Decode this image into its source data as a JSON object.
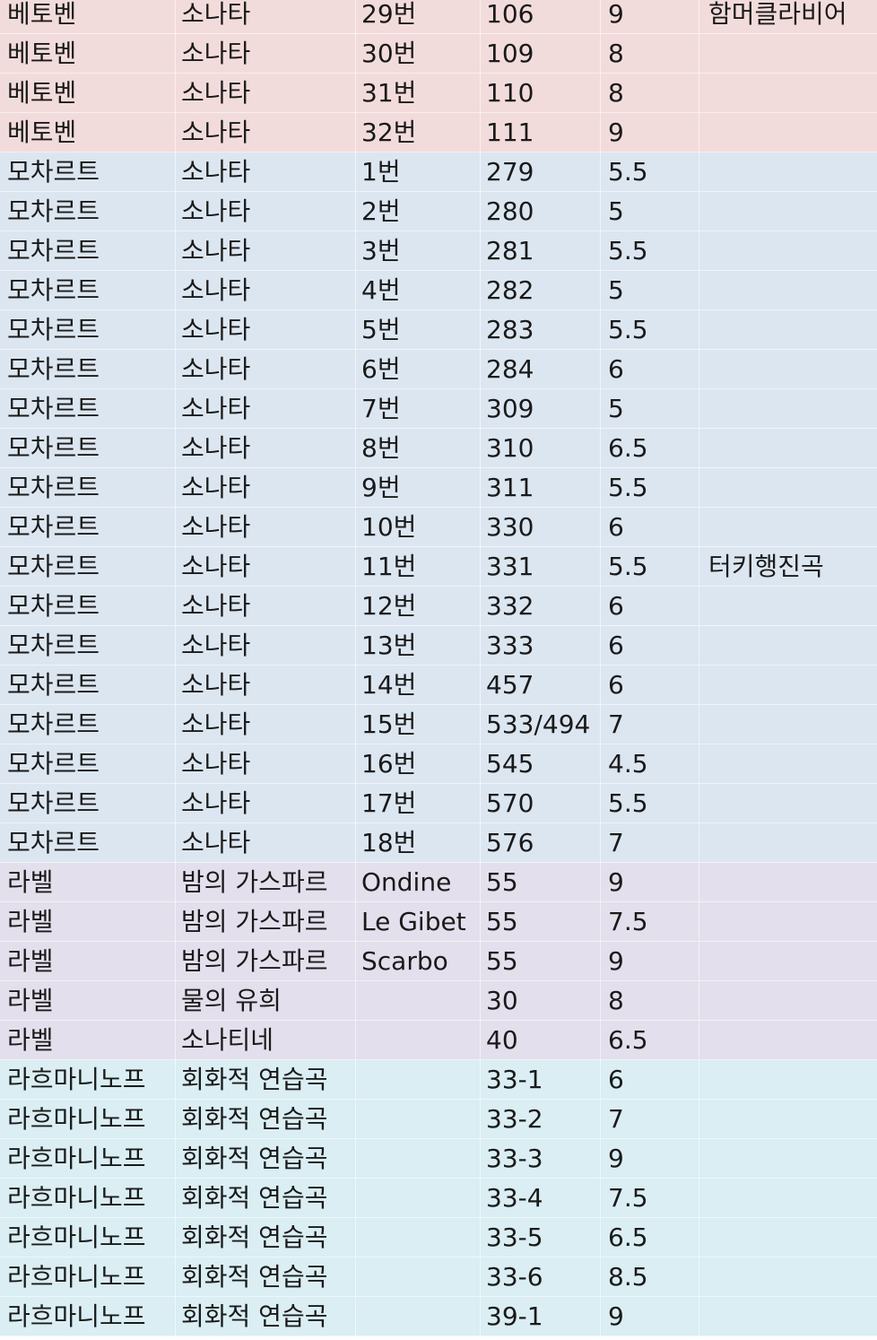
{
  "colors": {
    "beethoven": "#f2dcdb",
    "mozart": "#dce6f1",
    "ravel": "#e4dfec",
    "rachmaninoff": "#daeef3"
  },
  "rows": [
    {
      "group": "beethoven",
      "composer": "베토벤",
      "title": "소나타",
      "number": "29번",
      "opus": "106",
      "level": "9",
      "note": "함머클라비어"
    },
    {
      "group": "beethoven",
      "composer": "베토벤",
      "title": "소나타",
      "number": "30번",
      "opus": "109",
      "level": "8",
      "note": ""
    },
    {
      "group": "beethoven",
      "composer": "베토벤",
      "title": "소나타",
      "number": "31번",
      "opus": "110",
      "level": "8",
      "note": ""
    },
    {
      "group": "beethoven",
      "composer": "베토벤",
      "title": "소나타",
      "number": "32번",
      "opus": "111",
      "level": "9",
      "note": ""
    },
    {
      "group": "mozart",
      "composer": "모차르트",
      "title": "소나타",
      "number": "1번",
      "opus": "279",
      "level": "5.5",
      "note": ""
    },
    {
      "group": "mozart",
      "composer": "모차르트",
      "title": "소나타",
      "number": "2번",
      "opus": "280",
      "level": "5",
      "note": ""
    },
    {
      "group": "mozart",
      "composer": "모차르트",
      "title": "소나타",
      "number": "3번",
      "opus": "281",
      "level": "5.5",
      "note": ""
    },
    {
      "group": "mozart",
      "composer": "모차르트",
      "title": "소나타",
      "number": "4번",
      "opus": "282",
      "level": "5",
      "note": ""
    },
    {
      "group": "mozart",
      "composer": "모차르트",
      "title": "소나타",
      "number": "5번",
      "opus": "283",
      "level": "5.5",
      "note": ""
    },
    {
      "group": "mozart",
      "composer": "모차르트",
      "title": "소나타",
      "number": "6번",
      "opus": "284",
      "level": "6",
      "note": ""
    },
    {
      "group": "mozart",
      "composer": "모차르트",
      "title": "소나타",
      "number": "7번",
      "opus": "309",
      "level": "5",
      "note": ""
    },
    {
      "group": "mozart",
      "composer": "모차르트",
      "title": "소나타",
      "number": "8번",
      "opus": "310",
      "level": "6.5",
      "note": ""
    },
    {
      "group": "mozart",
      "composer": "모차르트",
      "title": "소나타",
      "number": "9번",
      "opus": "311",
      "level": "5.5",
      "note": ""
    },
    {
      "group": "mozart",
      "composer": "모차르트",
      "title": "소나타",
      "number": "10번",
      "opus": "330",
      "level": "6",
      "note": ""
    },
    {
      "group": "mozart",
      "composer": "모차르트",
      "title": "소나타",
      "number": "11번",
      "opus": "331",
      "level": "5.5",
      "note": "터키행진곡"
    },
    {
      "group": "mozart",
      "composer": "모차르트",
      "title": "소나타",
      "number": "12번",
      "opus": "332",
      "level": "6",
      "note": ""
    },
    {
      "group": "mozart",
      "composer": "모차르트",
      "title": "소나타",
      "number": "13번",
      "opus": "333",
      "level": "6",
      "note": ""
    },
    {
      "group": "mozart",
      "composer": "모차르트",
      "title": "소나타",
      "number": "14번",
      "opus": "457",
      "level": "6",
      "note": ""
    },
    {
      "group": "mozart",
      "composer": "모차르트",
      "title": "소나타",
      "number": "15번",
      "opus": "533/494",
      "level": "7",
      "note": ""
    },
    {
      "group": "mozart",
      "composer": "모차르트",
      "title": "소나타",
      "number": "16번",
      "opus": "545",
      "level": "4.5",
      "note": ""
    },
    {
      "group": "mozart",
      "composer": "모차르트",
      "title": "소나타",
      "number": "17번",
      "opus": "570",
      "level": "5.5",
      "note": ""
    },
    {
      "group": "mozart",
      "composer": "모차르트",
      "title": "소나타",
      "number": "18번",
      "opus": "576",
      "level": "7",
      "note": ""
    },
    {
      "group": "ravel",
      "composer": "라벨",
      "title": "밤의 가스파르",
      "number": "Ondine",
      "opus": "55",
      "level": "9",
      "note": ""
    },
    {
      "group": "ravel",
      "composer": "라벨",
      "title": "밤의 가스파르",
      "number": "Le Gibet",
      "opus": "55",
      "level": "7.5",
      "note": ""
    },
    {
      "group": "ravel",
      "composer": "라벨",
      "title": "밤의 가스파르",
      "number": "Scarbo",
      "opus": "55",
      "level": "9",
      "note": ""
    },
    {
      "group": "ravel",
      "composer": "라벨",
      "title": "물의 유희",
      "number": "",
      "opus": "30",
      "level": "8",
      "note": ""
    },
    {
      "group": "ravel",
      "composer": "라벨",
      "title": "소나티네",
      "number": "",
      "opus": "40",
      "level": "6.5",
      "note": ""
    },
    {
      "group": "rach",
      "composer": "라흐마니노프",
      "title": "회화적 연습곡",
      "number": "",
      "opus": "33-1",
      "level": "6",
      "note": ""
    },
    {
      "group": "rach",
      "composer": "라흐마니노프",
      "title": "회화적 연습곡",
      "number": "",
      "opus": "33-2",
      "level": "7",
      "note": ""
    },
    {
      "group": "rach",
      "composer": "라흐마니노프",
      "title": "회화적 연습곡",
      "number": "",
      "opus": "33-3",
      "level": "9",
      "note": ""
    },
    {
      "group": "rach",
      "composer": "라흐마니노프",
      "title": "회화적 연습곡",
      "number": "",
      "opus": "33-4",
      "level": "7.5",
      "note": ""
    },
    {
      "group": "rach",
      "composer": "라흐마니노프",
      "title": "회화적 연습곡",
      "number": "",
      "opus": "33-5",
      "level": "6.5",
      "note": ""
    },
    {
      "group": "rach",
      "composer": "라흐마니노프",
      "title": "회화적 연습곡",
      "number": "",
      "opus": "33-6",
      "level": "8.5",
      "note": ""
    },
    {
      "group": "rach",
      "composer": "라흐마니노프",
      "title": "회화적 연습곡",
      "number": "",
      "opus": "39-1",
      "level": "9",
      "note": ""
    }
  ]
}
